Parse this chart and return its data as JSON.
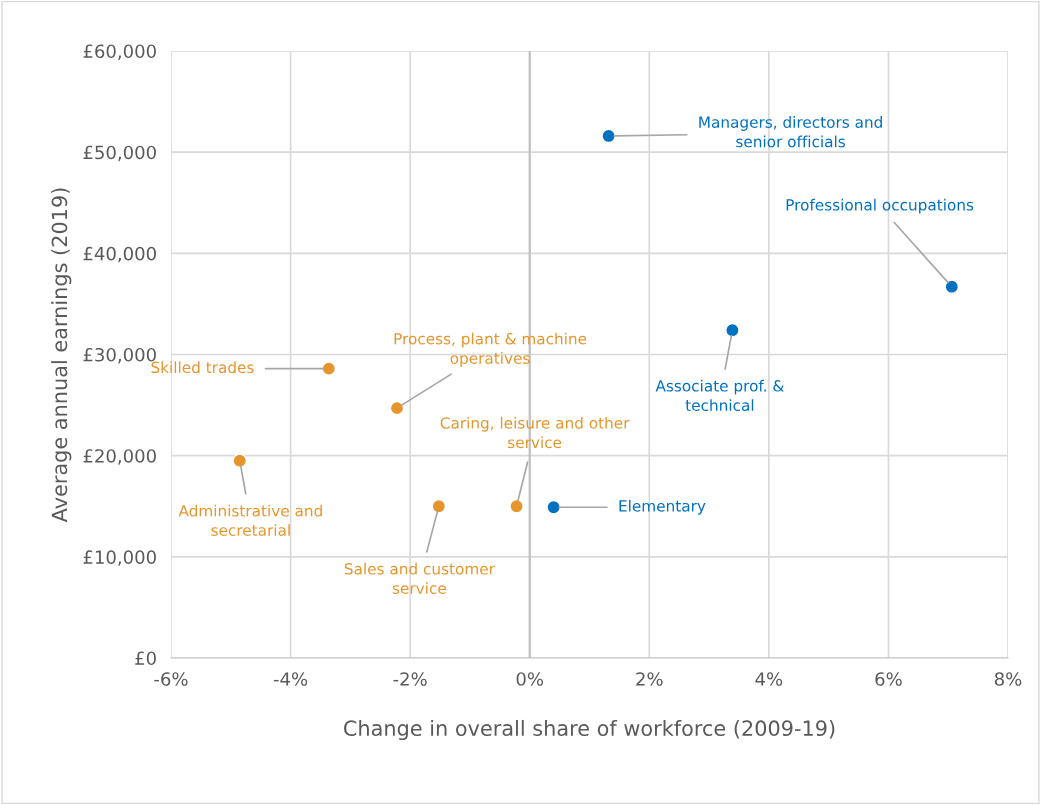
{
  "chart_data": {
    "type": "scatter",
    "xlabel": "Change in overall share of workforce (2009-19)",
    "ylabel": "Average annual earnings (2019)",
    "series": [
      {
        "color": "#0070c0",
        "x": [
          1.32,
          7.06,
          3.39,
          0.4
        ],
        "values": [
          51600,
          36700,
          32400,
          14900
        ]
      },
      {
        "color": "#e5952b",
        "x": [
          -3.36,
          -2.22,
          -4.85,
          -1.52,
          -0.22
        ],
        "values": [
          28600,
          24700,
          19500,
          15000,
          15000
        ]
      }
    ],
    "annotations": [
      {
        "text": "Managers, directors and\nsenior officials",
        "x": 1.32,
        "y": 51600
      },
      {
        "text": "Professional occupations",
        "x": 7.06,
        "y": 36700
      },
      {
        "text": "Associate prof. &\ntechnical",
        "x": 3.39,
        "y": 32400
      },
      {
        "text": "Elementary",
        "x": 0.4,
        "y": 14900
      },
      {
        "text": "Skilled trades",
        "x": -3.36,
        "y": 28600
      },
      {
        "text": "Process, plant & machine\noperatives",
        "x": -2.22,
        "y": 24700
      },
      {
        "text": "Administrative and\nsecretarial",
        "x": -4.85,
        "y": 19500
      },
      {
        "text": "Sales and customer\nservice",
        "x": -1.52,
        "y": 15000
      },
      {
        "text": "Caring, leisure and other\nservice",
        "x": -0.22,
        "y": 15000
      }
    ],
    "xlim": [
      -6,
      8
    ],
    "xticks": [
      {
        "value": -6,
        "label": "-6%"
      },
      {
        "value": -4,
        "label": "-4%"
      },
      {
        "value": -2,
        "label": "-2%"
      },
      {
        "value": 0,
        "label": "0%"
      },
      {
        "value": 2,
        "label": "2%"
      },
      {
        "value": 4,
        "label": "4%"
      },
      {
        "value": 6,
        "label": "6%"
      },
      {
        "value": 8,
        "label": "8%"
      }
    ],
    "ylim": [
      0,
      60000
    ],
    "yticks": [
      {
        "value": 0,
        "label": "£0"
      },
      {
        "value": 10000,
        "label": "£10,000"
      },
      {
        "value": 20000,
        "label": "£20,000"
      },
      {
        "value": 30000,
        "label": "£30,000"
      },
      {
        "value": 40000,
        "label": "£40,000"
      },
      {
        "value": 50000,
        "label": "£50,000"
      },
      {
        "value": 60000,
        "label": "£60,000"
      }
    ],
    "ref_lines": [
      {
        "axis": "x",
        "value": 0,
        "color": "#bfbfbf"
      }
    ],
    "grid": true,
    "marker": "circle",
    "legend": false
  }
}
